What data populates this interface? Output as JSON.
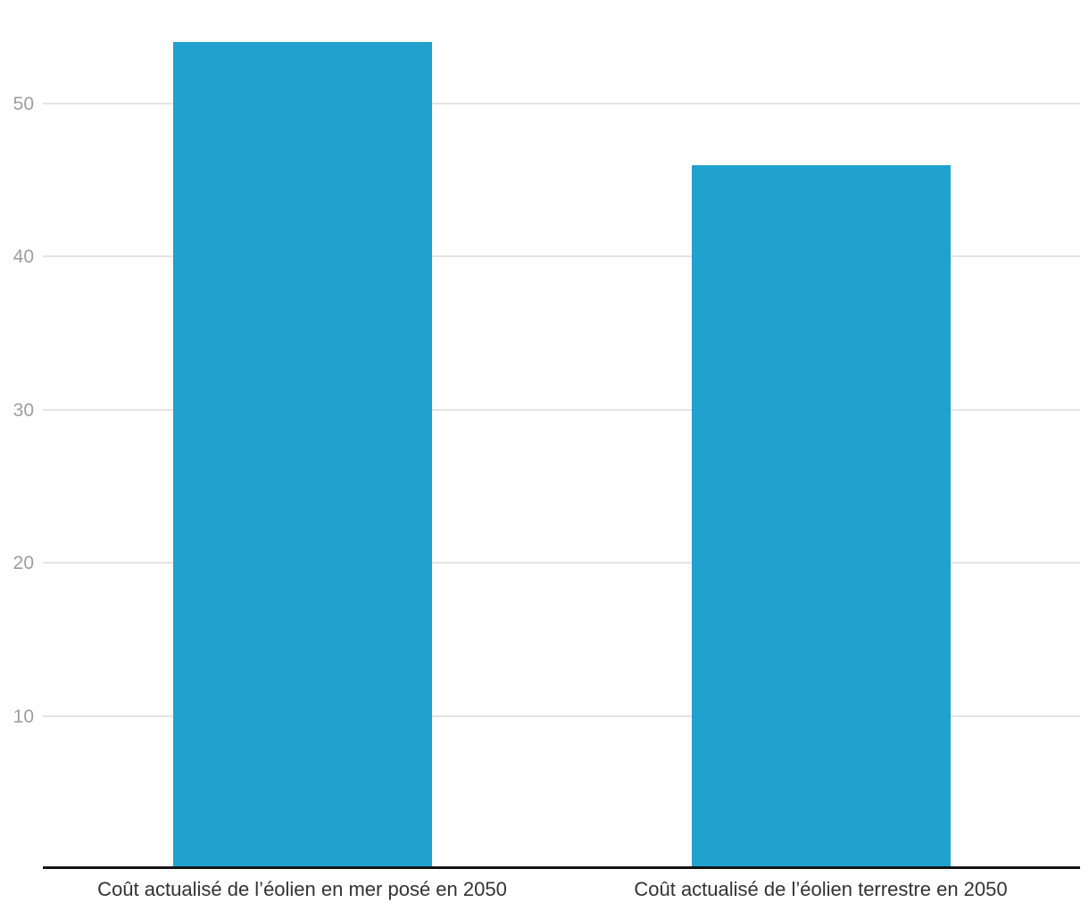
{
  "chart_data": {
    "type": "bar",
    "categories": [
      "Coût actualisé de l’éolien en mer posé en 2050",
      "Coût actualisé de l’éolien terrestre en 2050"
    ],
    "values": [
      54,
      46
    ],
    "yticks": [
      10,
      20,
      30,
      40,
      50
    ],
    "ylim": [
      0,
      56.7
    ],
    "grid": true,
    "legend_position": "none",
    "title": "",
    "xlabel": "",
    "ylabel": "",
    "colors": {
      "bar": "#21A1CE",
      "gridline": "#E4E4E4",
      "axis_line": "#141414",
      "y_tick_label": "#9E9E9E",
      "x_category_label": "#333333",
      "background": "#FFFFFF"
    }
  }
}
